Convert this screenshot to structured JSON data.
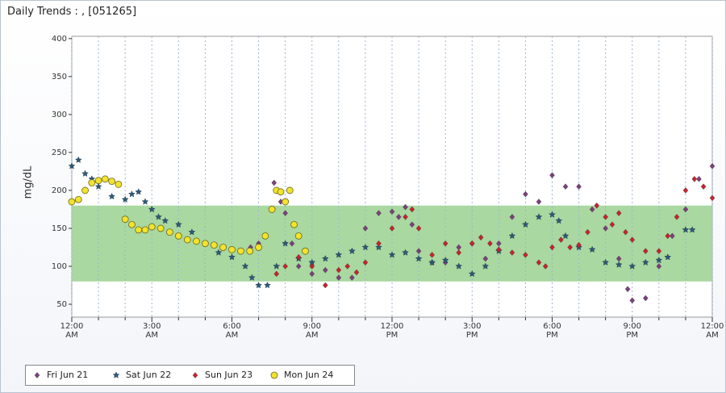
{
  "chart_data": {
    "type": "scatter",
    "title": "Daily Trends : ,  [051265]",
    "ylabel": "mg/dL",
    "xlim": [
      0,
      24
    ],
    "ylim": [
      33,
      403
    ],
    "yticks": [
      50,
      100,
      150,
      200,
      250,
      300,
      350,
      400
    ],
    "xticks": [
      {
        "value": 0,
        "label": "12:00 AM"
      },
      {
        "value": 3,
        "label": "3:00 AM"
      },
      {
        "value": 6,
        "label": "6:00 AM"
      },
      {
        "value": 9,
        "label": "9:00 AM"
      },
      {
        "value": 12,
        "label": "12:00 PM"
      },
      {
        "value": 15,
        "label": "3:00 PM"
      },
      {
        "value": 18,
        "label": "6:00 PM"
      },
      {
        "value": 21,
        "label": "9:00 PM"
      },
      {
        "value": 24,
        "label": "12:00 AM"
      }
    ],
    "xminorticks": [
      1,
      2,
      4,
      5,
      7,
      8,
      10,
      11,
      13,
      14,
      16,
      17,
      19,
      20,
      22,
      23
    ],
    "xgrid": true,
    "target_range": [
      80,
      180
    ],
    "target_color": "#a9d8a0",
    "legend": "bottom-left",
    "series": [
      {
        "name": "Fri Jun 21",
        "color": "#7d3f7f",
        "marker": "diamond",
        "x": [
          6.7,
          7.0,
          7.58,
          7.83,
          8.0,
          8.25,
          8.5,
          9.0,
          9.5,
          10.0,
          10.5,
          11.0,
          11.5,
          12.0,
          12.25,
          12.5,
          12.75,
          13.0,
          13.5,
          14.0,
          14.5,
          15.0,
          15.5,
          16.0,
          16.5,
          17.0,
          17.5,
          18.0,
          18.5,
          19.0,
          19.5,
          20.0,
          20.5,
          20.83,
          21.0,
          21.5,
          22.0,
          22.5,
          23.0,
          23.5,
          24.0
        ],
        "values": [
          125,
          130,
          210,
          185,
          170,
          130,
          100,
          90,
          95,
          85,
          85,
          150,
          170,
          172,
          165,
          178,
          155,
          120,
          105,
          105,
          125,
          130,
          110,
          130,
          165,
          195,
          185,
          220,
          205,
          205,
          175,
          150,
          110,
          70,
          55,
          58,
          100,
          140,
          175,
          215,
          232
        ]
      },
      {
        "name": "Sat Jun 22",
        "color": "#2f5a78",
        "marker": "star",
        "x": [
          0,
          0.25,
          0.5,
          0.75,
          1.0,
          1.5,
          2.0,
          2.25,
          2.5,
          2.75,
          3.0,
          3.25,
          3.5,
          4.0,
          4.5,
          5.0,
          5.5,
          6.0,
          6.5,
          6.75,
          7.0,
          7.33,
          7.67,
          8.0,
          8.5,
          9.0,
          9.5,
          10.0,
          10.5,
          11.0,
          11.5,
          12.0,
          12.5,
          13.0,
          13.5,
          14.0,
          14.5,
          15.0,
          15.5,
          16.0,
          16.5,
          17.0,
          17.5,
          18.0,
          18.25,
          18.5,
          19.0,
          19.5,
          20.0,
          20.5,
          21.0,
          21.5,
          22.0,
          22.33,
          23.0,
          23.25
        ],
        "values": [
          232,
          240,
          222,
          215,
          205,
          192,
          188,
          195,
          198,
          185,
          175,
          165,
          160,
          155,
          145,
          130,
          118,
          112,
          100,
          85,
          75,
          75,
          100,
          130,
          110,
          105,
          110,
          115,
          120,
          125,
          125,
          115,
          118,
          110,
          105,
          108,
          100,
          90,
          100,
          120,
          140,
          155,
          165,
          168,
          160,
          140,
          125,
          122,
          105,
          102,
          100,
          105,
          108,
          112,
          148,
          148
        ]
      },
      {
        "name": "Sun Jun 23",
        "color": "#c8232c",
        "marker": "diamond",
        "x": [
          7.67,
          8.0,
          8.5,
          9.0,
          9.5,
          10.0,
          10.33,
          10.67,
          11.0,
          11.5,
          12.0,
          12.5,
          12.75,
          13.0,
          13.5,
          14.0,
          14.5,
          15.0,
          15.33,
          15.67,
          16.0,
          16.5,
          17.0,
          17.5,
          17.75,
          18.0,
          18.33,
          18.67,
          19.0,
          19.33,
          19.67,
          20.0,
          20.25,
          20.5,
          20.75,
          21.0,
          21.5,
          22.0,
          22.33,
          22.67,
          23.0,
          23.33,
          23.67,
          24.0
        ],
        "values": [
          90,
          100,
          112,
          100,
          75,
          95,
          100,
          92,
          105,
          130,
          150,
          165,
          175,
          150,
          115,
          130,
          118,
          130,
          138,
          130,
          122,
          118,
          115,
          105,
          100,
          125,
          135,
          125,
          128,
          145,
          180,
          165,
          155,
          170,
          145,
          135,
          120,
          120,
          140,
          165,
          200,
          215,
          205,
          190
        ]
      },
      {
        "name": "Mon Jun 24",
        "color": "#f2e32c",
        "marker": "circle",
        "x": [
          0,
          0.25,
          0.5,
          0.75,
          1.0,
          1.25,
          1.5,
          1.75,
          2.0,
          2.25,
          2.5,
          2.75,
          3.0,
          3.33,
          3.67,
          4.0,
          4.33,
          4.67,
          5.0,
          5.33,
          5.67,
          6.0,
          6.33,
          6.67,
          7.0,
          7.25,
          7.5,
          7.67,
          7.83,
          8.0,
          8.17,
          8.33,
          8.5,
          8.75
        ],
        "values": [
          185,
          188,
          200,
          210,
          213,
          215,
          212,
          208,
          162,
          155,
          148,
          148,
          152,
          150,
          145,
          140,
          135,
          133,
          130,
          128,
          125,
          122,
          120,
          120,
          125,
          140,
          175,
          200,
          198,
          185,
          200,
          155,
          140,
          120
        ]
      }
    ]
  }
}
